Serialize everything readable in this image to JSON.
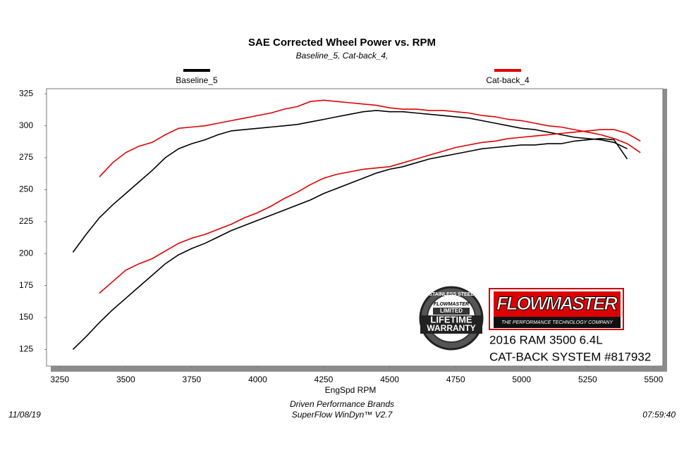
{
  "chart_data": {
    "type": "line",
    "title": "SAE Corrected Wheel Power vs. RPM",
    "subtitle": "Baseline_5, Cat-back_4,",
    "x_label": "EngSpd  RPM",
    "x": [
      3300,
      3350,
      3400,
      3450,
      3500,
      3550,
      3600,
      3650,
      3700,
      3750,
      3800,
      3850,
      3900,
      3950,
      4000,
      4050,
      4100,
      4150,
      4200,
      4250,
      4300,
      4350,
      4400,
      4450,
      4500,
      4550,
      4600,
      4650,
      4700,
      4750,
      4800,
      4850,
      4900,
      4950,
      5000,
      5050,
      5100,
      5150,
      5200,
      5250,
      5300,
      5350,
      5400,
      5450
    ],
    "series": [
      {
        "name": "Baseline_5",
        "color": "#000000",
        "values": [
          [
            201,
            215,
            228,
            238,
            247,
            256,
            265,
            275,
            282,
            286,
            289,
            293,
            296,
            297,
            298,
            299,
            300,
            301,
            303,
            305,
            307,
            309,
            311,
            312,
            311,
            311,
            310,
            309,
            308,
            307,
            306,
            304,
            302,
            300,
            298,
            297,
            295,
            293,
            291,
            290,
            289,
            287,
            282,
            null
          ],
          [
            125,
            135,
            146,
            156,
            165,
            174,
            183,
            192,
            199,
            204,
            208,
            213,
            218,
            222,
            226,
            230,
            234,
            238,
            242,
            247,
            251,
            255,
            259,
            263,
            266,
            268,
            271,
            274,
            276,
            278,
            280,
            282,
            283,
            284,
            285,
            285,
            286,
            286,
            288,
            289,
            290,
            289,
            274,
            null
          ]
        ]
      },
      {
        "name": "Cat-back_4",
        "color": "#e00000",
        "values": [
          [
            null,
            null,
            260,
            271,
            279,
            284,
            287,
            293,
            298,
            299,
            300,
            302,
            304,
            306,
            308,
            310,
            313,
            315,
            319,
            320,
            319,
            318,
            317,
            316,
            314,
            313,
            313,
            312,
            312,
            311,
            310,
            308,
            307,
            305,
            304,
            302,
            300,
            299,
            297,
            295,
            293,
            290,
            286,
            279
          ],
          [
            null,
            null,
            169,
            178,
            187,
            192,
            196,
            202,
            208,
            212,
            215,
            219,
            223,
            228,
            232,
            237,
            243,
            248,
            254,
            259,
            262,
            264,
            266,
            267,
            268,
            271,
            274,
            277,
            280,
            283,
            285,
            287,
            288,
            290,
            291,
            292,
            293,
            294,
            295,
            296,
            297,
            297,
            294,
            288
          ]
        ]
      }
    ],
    "xlim": [
      3200,
      5535
    ],
    "xticks": [
      3250,
      3500,
      3750,
      4000,
      4250,
      4500,
      4750,
      5000,
      5250,
      5500
    ],
    "ylim": [
      112,
      329
    ],
    "yticks": [
      125,
      150,
      175,
      200,
      225,
      250,
      275,
      300,
      325
    ],
    "grid": false,
    "legend": "top"
  },
  "footer": {
    "company": "Driven Performance Brands",
    "software": "SuperFlow WinDyn™  V2.7",
    "date": "11/08/19",
    "time": "07:59:40"
  },
  "logo": {
    "brand": "FLOWMASTER",
    "tagline": "THE PERFORMANCE TECHNOLOGY COMPANY",
    "vehicle": "2016 RAM 3500 6.4L",
    "product": "CAT-BACK SYSTEM #817932"
  },
  "badge": {
    "top": "STAINLESS STEEL",
    "brand": "FLOWMASTER",
    "limited": "LIMITED",
    "line1": "LIFETIME",
    "line2": "WARRANTY"
  }
}
